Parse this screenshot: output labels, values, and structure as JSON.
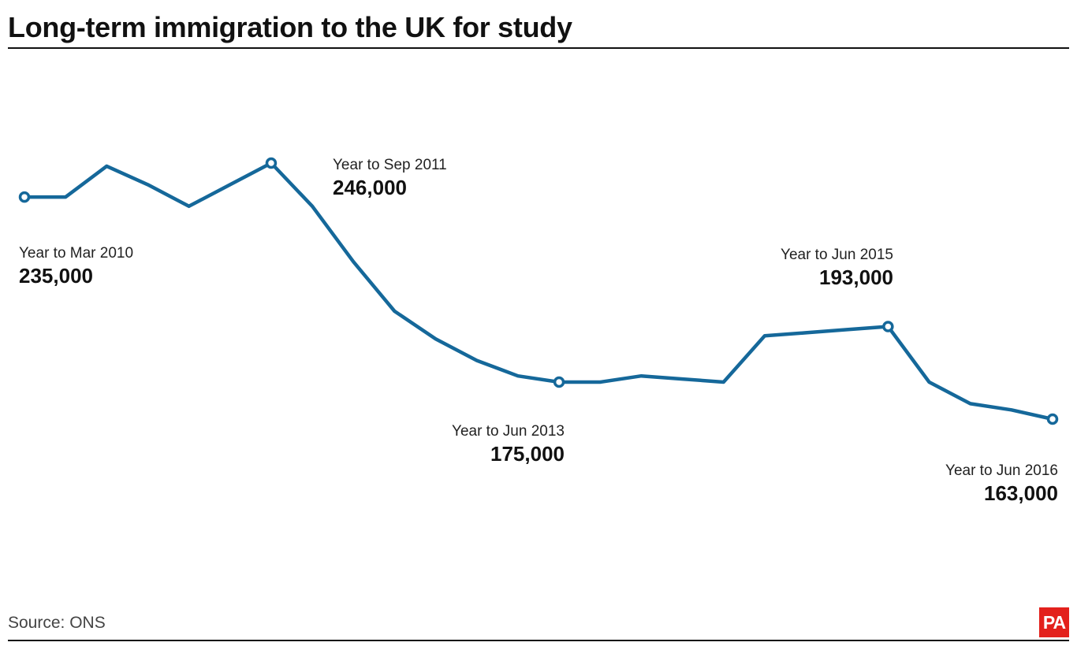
{
  "title": "Long-term immigration to the UK for study",
  "source": "Source: ONS",
  "logo_text": "PA",
  "colors": {
    "line": "#15689a",
    "logo_bg": "#e3211c",
    "text": "#111111"
  },
  "chart_data": {
    "type": "line",
    "title": "Long-term immigration to the UK for study",
    "xlabel": "",
    "ylabel": "",
    "grid": false,
    "legend": "none",
    "ylim": [
      100000,
      300000
    ],
    "series": [
      {
        "values": [
          235000,
          235000,
          245000,
          239000,
          232000,
          239000,
          246000,
          232000,
          214000,
          198000,
          189000,
          182000,
          177000,
          175000,
          175000,
          177000,
          176000,
          175000,
          190000,
          191000,
          192000,
          193000,
          175000,
          168000,
          166000,
          163000
        ]
      }
    ],
    "annotations": [
      {
        "point": 0,
        "date": "Year to Mar 2010",
        "value": "235,000"
      },
      {
        "point": 6,
        "date": "Year to Sep 2011",
        "value": "246,000"
      },
      {
        "point": 13,
        "date": "Year to Jun 2013",
        "value": "175,000"
      },
      {
        "point": 21,
        "date": "Year to Jun 2015",
        "value": "193,000"
      },
      {
        "point": 25,
        "date": "Year to Jun 2016",
        "value": "163,000"
      }
    ]
  }
}
